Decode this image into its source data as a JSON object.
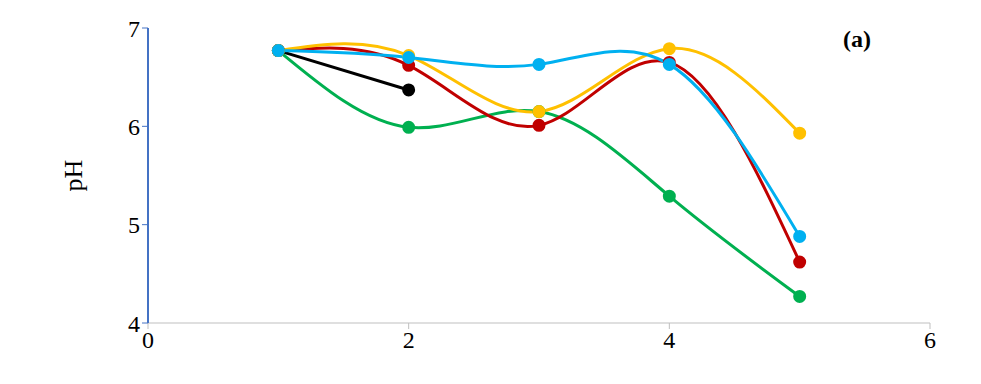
{
  "chart_data": {
    "type": "line",
    "ylabel": "pH",
    "annotation": "(a)",
    "x": [
      1,
      2,
      3,
      4,
      5
    ],
    "xlim": [
      0,
      6
    ],
    "xticks": [
      0,
      2,
      4,
      6
    ],
    "ylim": [
      4,
      7
    ],
    "yticks": [
      4,
      5,
      6,
      7
    ],
    "grid": false,
    "series": [
      {
        "color": "#000000",
        "values": [
          6.77,
          6.37,
          null,
          null,
          null
        ],
        "marker": "circle",
        "line_style": "solid"
      },
      {
        "color": "#00b050",
        "values": [
          6.77,
          5.99,
          6.15,
          5.29,
          4.27
        ],
        "marker": "circle",
        "line_style": "smooth"
      },
      {
        "color": "#c00000",
        "values": [
          6.77,
          6.62,
          6.01,
          6.65,
          4.62
        ],
        "marker": "circle",
        "line_style": "smooth"
      },
      {
        "color": "#ffc000",
        "values": [
          6.77,
          6.72,
          6.15,
          6.79,
          5.93
        ],
        "marker": "circle",
        "line_style": "smooth"
      },
      {
        "color": "#00b0f0",
        "values": [
          6.77,
          6.7,
          6.63,
          6.63,
          4.88
        ],
        "marker": "circle",
        "line_style": "smooth"
      }
    ]
  }
}
